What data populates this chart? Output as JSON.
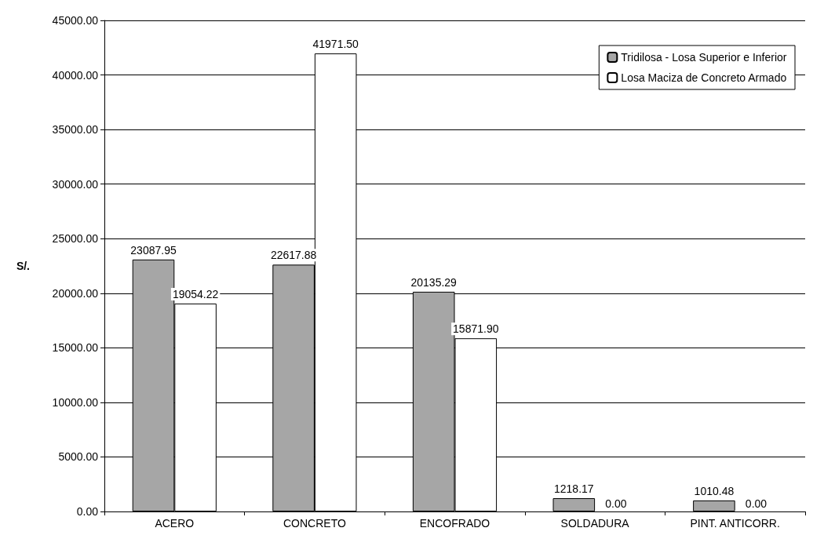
{
  "chart_data": {
    "type": "bar",
    "ylabel": "S/.",
    "categories": [
      "ACERO",
      "CONCRETO",
      "ENCOFRADO",
      "SOLDADURA",
      "PINT. ANTICORR."
    ],
    "series": [
      {
        "name": "Tridilosa - Losa Superior e Inferior",
        "color": "#a6a6a6",
        "values": [
          23087.95,
          22617.88,
          20135.29,
          1218.17,
          1010.48
        ],
        "value_labels": [
          "23087.95",
          "22617.88",
          "20135.29",
          "1218.17",
          "1010.48"
        ]
      },
      {
        "name": "Losa Maciza de Concreto Armado",
        "color": "#ffffff",
        "values": [
          19054.22,
          41971.5,
          15871.9,
          0,
          0
        ],
        "value_labels": [
          "19054.22",
          "41971.50",
          "15871.90",
          "0.00",
          "0.00"
        ]
      }
    ],
    "ylim": [
      0,
      45000
    ],
    "yticks": [
      {
        "value": 0,
        "label": "0.00"
      },
      {
        "value": 5000,
        "label": "5000.00"
      },
      {
        "value": 10000,
        "label": "10000.00"
      },
      {
        "value": 15000,
        "label": "15000.00"
      },
      {
        "value": 20000,
        "label": "20000.00"
      },
      {
        "value": 25000,
        "label": "25000.00"
      },
      {
        "value": 30000,
        "label": "30000.00"
      },
      {
        "value": 35000,
        "label": "35000.00"
      },
      {
        "value": 40000,
        "label": "40000.00"
      },
      {
        "value": 45000,
        "label": "45000.00"
      }
    ],
    "grid": "y",
    "legend": "top right"
  }
}
